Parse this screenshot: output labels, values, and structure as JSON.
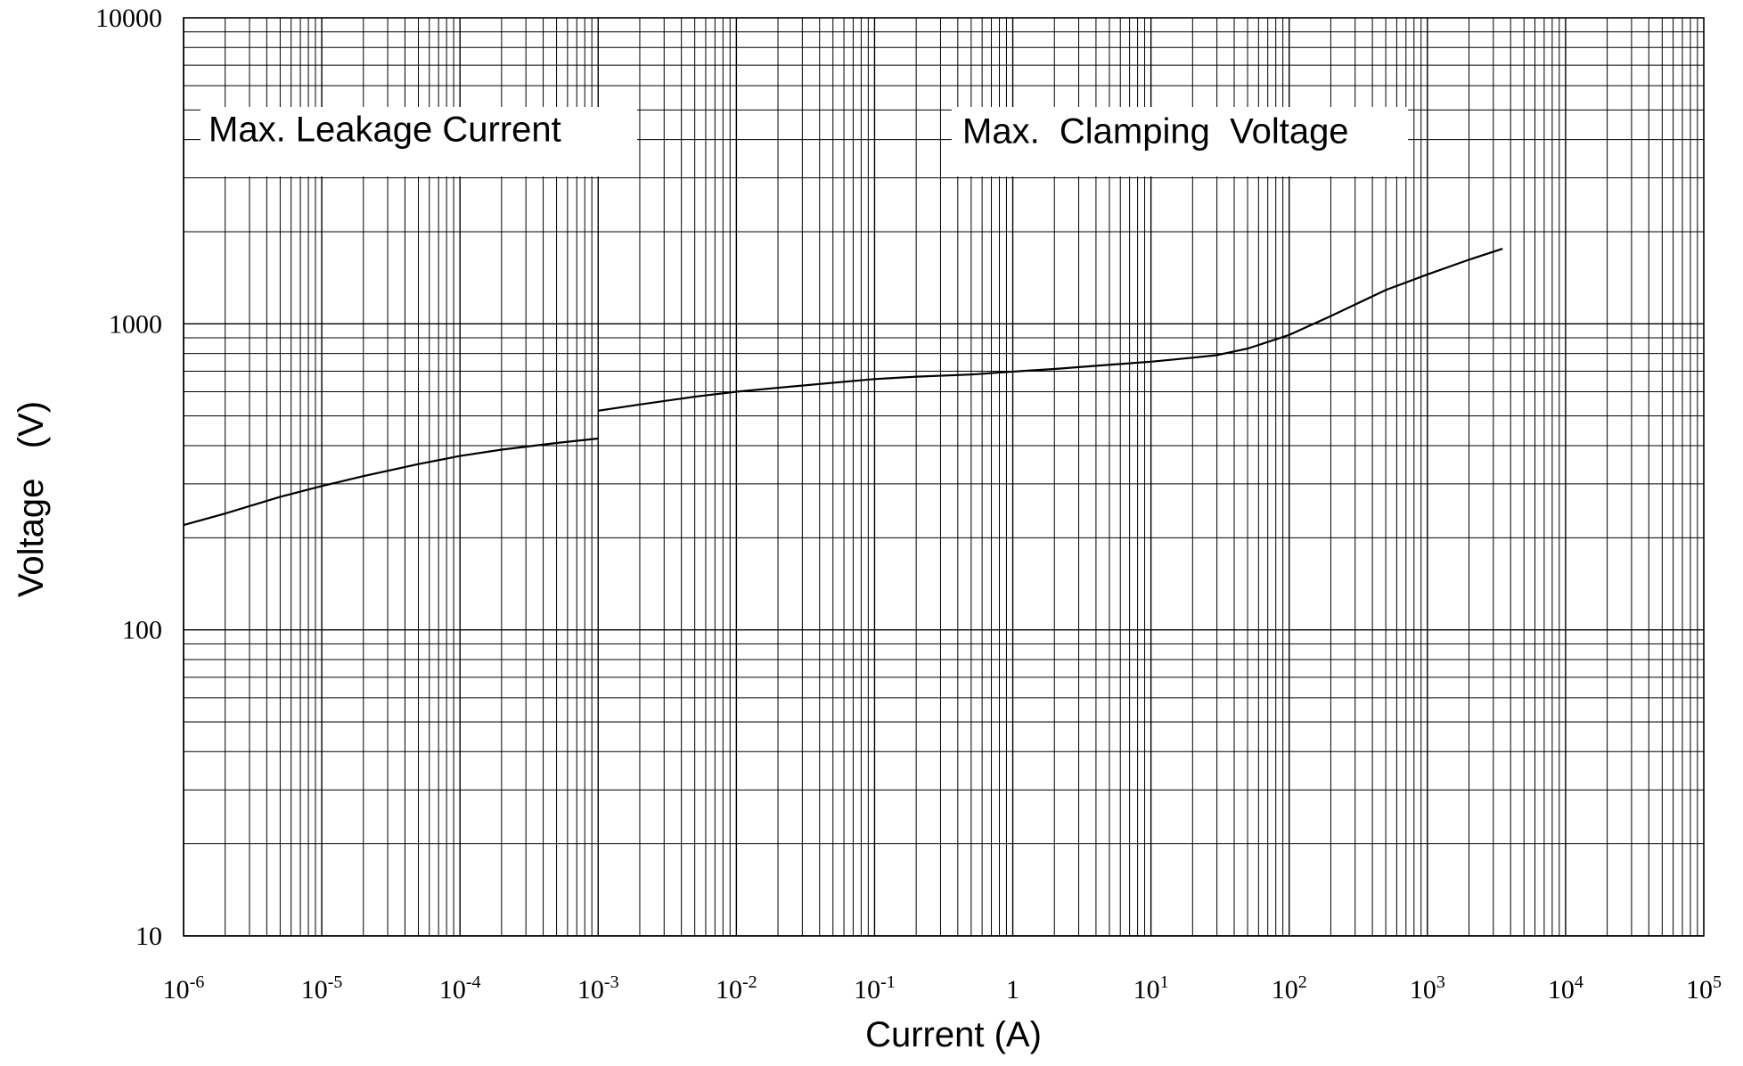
{
  "chart_data": {
    "type": "line",
    "xlabel": "Current (A)",
    "ylabel": "Voltage   (V)",
    "x_scale": "log",
    "y_scale": "log",
    "xlim": [
      1e-06,
      100000
    ],
    "ylim": [
      10,
      10000
    ],
    "grid": true,
    "x_ticks": [
      {
        "base": "10",
        "exp": "-6"
      },
      {
        "base": "10",
        "exp": "-5"
      },
      {
        "base": "10",
        "exp": "-4"
      },
      {
        "base": "10",
        "exp": "-3"
      },
      {
        "base": "10",
        "exp": "-2"
      },
      {
        "base": "10",
        "exp": "-1"
      },
      {
        "base": "1",
        "exp": ""
      },
      {
        "base": "10",
        "exp": "1"
      },
      {
        "base": "10",
        "exp": "2"
      },
      {
        "base": "10",
        "exp": "3"
      },
      {
        "base": "10",
        "exp": "4"
      },
      {
        "base": "10",
        "exp": "5"
      }
    ],
    "y_ticks": [
      "10",
      "100",
      "1000",
      "10000"
    ],
    "annotations": [
      "Max. Leakage Current",
      "Max.  Clamping  Voltage"
    ],
    "series": [
      {
        "points": [
          [
            1e-06,
            220
          ],
          [
            2e-06,
            240
          ],
          [
            5e-06,
            272
          ],
          [
            1e-05,
            295
          ],
          [
            2e-05,
            318
          ],
          [
            5e-05,
            348
          ],
          [
            0.0001,
            370
          ],
          [
            0.0002,
            388
          ],
          [
            0.0005,
            408
          ],
          [
            0.001,
            422
          ]
        ]
      },
      {
        "points": [
          [
            0.001,
            520
          ],
          [
            0.002,
            545
          ],
          [
            0.005,
            578
          ],
          [
            0.01,
            600
          ],
          [
            0.02,
            618
          ],
          [
            0.05,
            642
          ],
          [
            0.1,
            660
          ],
          [
            0.2,
            672
          ],
          [
            0.5,
            683
          ],
          [
            1,
            698
          ],
          [
            2,
            712
          ],
          [
            5,
            735
          ],
          [
            10,
            752
          ],
          [
            20,
            775
          ],
          [
            30,
            790
          ],
          [
            50,
            830
          ],
          [
            100,
            920
          ],
          [
            200,
            1060
          ],
          [
            500,
            1290
          ],
          [
            1000,
            1450
          ],
          [
            2000,
            1620
          ],
          [
            3500,
            1760
          ]
        ]
      }
    ]
  }
}
